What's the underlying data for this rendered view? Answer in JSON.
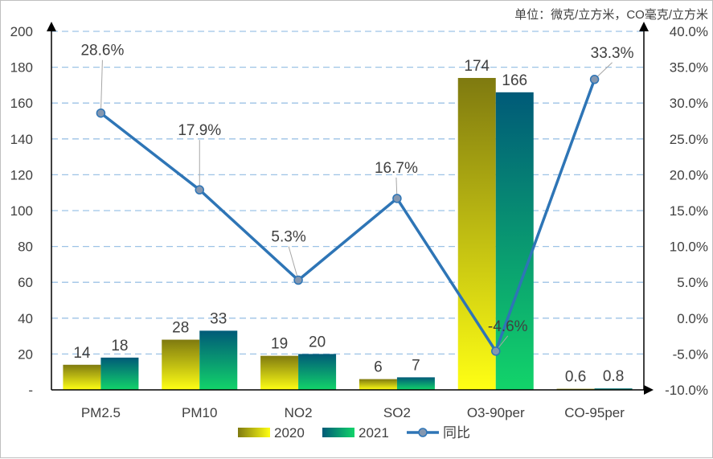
{
  "chart_data": {
    "type": "bar+line",
    "unit_note": "单位：微克/立方米，CO毫克/立方米",
    "categories": [
      "PM2.5",
      "PM10",
      "NO2",
      "SO2",
      "O3-90per",
      "CO-95per"
    ],
    "series": [
      {
        "name": "2020",
        "type": "bar",
        "axis": "left",
        "values": [
          14,
          28,
          19,
          6,
          174,
          0.6
        ],
        "labels": [
          "14",
          "28",
          "19",
          "6",
          "174",
          "0.6"
        ]
      },
      {
        "name": "2021",
        "type": "bar",
        "axis": "left",
        "values": [
          18,
          33,
          20,
          7,
          166,
          0.8
        ],
        "labels": [
          "18",
          "33",
          "20",
          "7",
          "166",
          "0.8"
        ]
      },
      {
        "name": "同比",
        "type": "line",
        "axis": "right",
        "values": [
          28.6,
          17.9,
          5.3,
          16.7,
          -4.6,
          33.3
        ],
        "labels": [
          "28.6%",
          "17.9%",
          "5.3%",
          "16.7%",
          "-4.6%",
          "33.3%"
        ]
      }
    ],
    "left_axis": {
      "ylim": [
        0,
        200
      ],
      "ticks": [
        "-",
        "20",
        "40",
        "60",
        "80",
        "100",
        "120",
        "140",
        "160",
        "180",
        "200"
      ]
    },
    "right_axis": {
      "ylim": [
        -10,
        40
      ],
      "ticks": [
        "-10.0%",
        "-5.0%",
        "0.0%",
        "5.0%",
        "10.0%",
        "15.0%",
        "20.0%",
        "25.0%",
        "30.0%",
        "35.0%",
        "40.0%"
      ]
    },
    "grid": true,
    "legend": "bottom",
    "colors": {
      "line": "#2e75b6",
      "marker": "#8497b0",
      "grid": "#9dc3e6",
      "bar2020_top": "#7f7a10",
      "bar2020_bottom": "#ffff14",
      "bar2021_top": "#005a78",
      "bar2021_bottom": "#12d46a"
    }
  }
}
